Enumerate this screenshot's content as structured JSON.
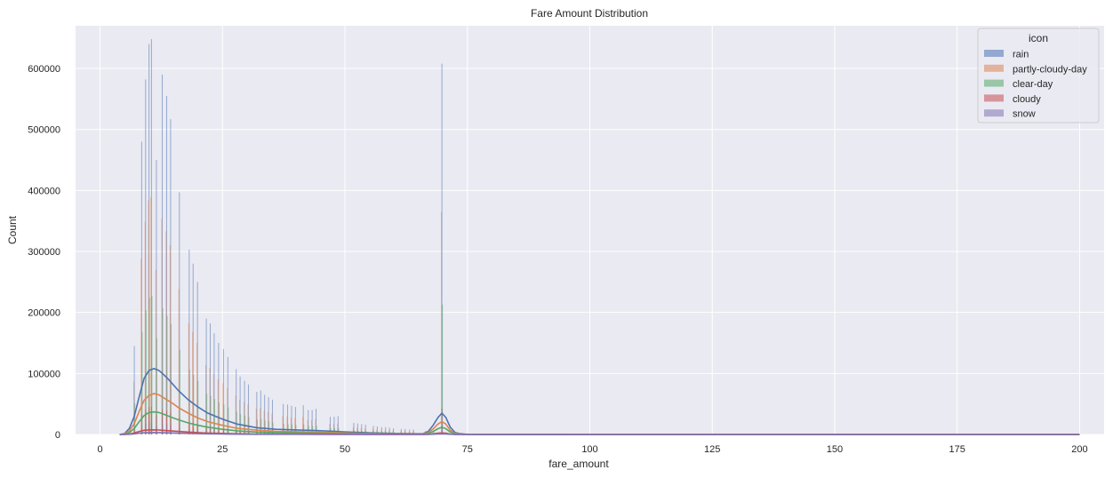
{
  "chart_data": {
    "type": "bar",
    "title": "Fare Amount Distribution",
    "xlabel": "fare_amount",
    "ylabel": "Count",
    "xlim": [
      -5,
      205
    ],
    "ylim": [
      0,
      670000
    ],
    "x_ticks": [
      0,
      25,
      50,
      75,
      100,
      125,
      150,
      175,
      200
    ],
    "y_ticks": [
      0,
      100000,
      200000,
      300000,
      400000,
      500000,
      600000
    ],
    "grid": true,
    "legend": {
      "title": "icon",
      "placement": "top-right"
    },
    "bins": [
      {
        "x": 7.0,
        "count": 145000
      },
      {
        "x": 8.5,
        "count": 480000
      },
      {
        "x": 9.3,
        "count": 582000
      },
      {
        "x": 10.0,
        "count": 640000
      },
      {
        "x": 10.5,
        "count": 648000
      },
      {
        "x": 11.5,
        "count": 450000
      },
      {
        "x": 12.7,
        "count": 590000
      },
      {
        "x": 13.6,
        "count": 555000
      },
      {
        "x": 14.4,
        "count": 517000
      },
      {
        "x": 16.2,
        "count": 397000
      },
      {
        "x": 18.2,
        "count": 303000
      },
      {
        "x": 19.0,
        "count": 280000
      },
      {
        "x": 19.9,
        "count": 250000
      },
      {
        "x": 21.7,
        "count": 190000
      },
      {
        "x": 22.5,
        "count": 182000
      },
      {
        "x": 23.3,
        "count": 166000
      },
      {
        "x": 24.2,
        "count": 150000
      },
      {
        "x": 25.2,
        "count": 140000
      },
      {
        "x": 26.1,
        "count": 127000
      },
      {
        "x": 27.8,
        "count": 107000
      },
      {
        "x": 28.6,
        "count": 95000
      },
      {
        "x": 29.5,
        "count": 88000
      },
      {
        "x": 30.3,
        "count": 82000
      },
      {
        "x": 32.0,
        "count": 70000
      },
      {
        "x": 32.8,
        "count": 72000
      },
      {
        "x": 33.6,
        "count": 65000
      },
      {
        "x": 34.4,
        "count": 61000
      },
      {
        "x": 35.2,
        "count": 57000
      },
      {
        "x": 37.4,
        "count": 50000
      },
      {
        "x": 38.3,
        "count": 49000
      },
      {
        "x": 39.1,
        "count": 47000
      },
      {
        "x": 39.9,
        "count": 45000
      },
      {
        "x": 41.5,
        "count": 48000
      },
      {
        "x": 42.5,
        "count": 40000
      },
      {
        "x": 43.3,
        "count": 40000
      },
      {
        "x": 44.1,
        "count": 42000
      },
      {
        "x": 47.0,
        "count": 29000
      },
      {
        "x": 47.8,
        "count": 29000
      },
      {
        "x": 48.6,
        "count": 30000
      },
      {
        "x": 51.8,
        "count": 19000
      },
      {
        "x": 52.6,
        "count": 18000
      },
      {
        "x": 53.4,
        "count": 17000
      },
      {
        "x": 54.2,
        "count": 16000
      },
      {
        "x": 55.8,
        "count": 14000
      },
      {
        "x": 56.6,
        "count": 13000
      },
      {
        "x": 57.5,
        "count": 12000
      },
      {
        "x": 58.3,
        "count": 12000
      },
      {
        "x": 59.1,
        "count": 11000
      },
      {
        "x": 59.9,
        "count": 10000
      },
      {
        "x": 61.5,
        "count": 9000
      },
      {
        "x": 62.3,
        "count": 9000
      },
      {
        "x": 63.2,
        "count": 8000
      },
      {
        "x": 64.0,
        "count": 8000
      },
      {
        "x": 66.5,
        "count": 6000
      },
      {
        "x": 67.3,
        "count": 5000
      },
      {
        "x": 68.1,
        "count": 5000
      },
      {
        "x": 69.8,
        "count": 608000
      },
      {
        "x": 72.0,
        "count": 4000
      },
      {
        "x": 74.0,
        "count": 3000
      }
    ],
    "series": [
      {
        "name": "rain",
        "color": "#4c72b0",
        "share": 1.0,
        "kde": [
          [
            4,
            0
          ],
          [
            5,
            1500
          ],
          [
            6,
            10000
          ],
          [
            7,
            30000
          ],
          [
            8,
            62000
          ],
          [
            9,
            92000
          ],
          [
            10,
            105000
          ],
          [
            11,
            108000
          ],
          [
            12,
            105000
          ],
          [
            13,
            98000
          ],
          [
            14,
            90000
          ],
          [
            15,
            81000
          ],
          [
            16,
            72000
          ],
          [
            18,
            57000
          ],
          [
            20,
            45000
          ],
          [
            22,
            35000
          ],
          [
            25,
            25000
          ],
          [
            28,
            17000
          ],
          [
            32,
            11000
          ],
          [
            36,
            8500
          ],
          [
            40,
            7500
          ],
          [
            44,
            6500
          ],
          [
            48,
            5000
          ],
          [
            52,
            3500
          ],
          [
            56,
            2500
          ],
          [
            60,
            1800
          ],
          [
            64,
            1200
          ],
          [
            66,
            1500
          ],
          [
            67,
            5000
          ],
          [
            68,
            15000
          ],
          [
            69,
            28000
          ],
          [
            69.8,
            35000
          ],
          [
            70.6,
            28000
          ],
          [
            71.5,
            12000
          ],
          [
            72.5,
            3000
          ],
          [
            74,
            600
          ],
          [
            76,
            200
          ],
          [
            80,
            100
          ],
          [
            100,
            50
          ],
          [
            200,
            0
          ]
        ]
      },
      {
        "name": "partly-cloudy-day",
        "color": "#dd8452",
        "share": 0.6,
        "kde": [
          [
            4,
            0
          ],
          [
            5,
            800
          ],
          [
            6,
            6000
          ],
          [
            7,
            18000
          ],
          [
            8,
            38000
          ],
          [
            9,
            56000
          ],
          [
            10,
            64000
          ],
          [
            11,
            67000
          ],
          [
            12,
            65000
          ],
          [
            13,
            60000
          ],
          [
            14,
            55000
          ],
          [
            15,
            50000
          ],
          [
            16,
            44000
          ],
          [
            18,
            35000
          ],
          [
            20,
            27000
          ],
          [
            22,
            21000
          ],
          [
            25,
            15000
          ],
          [
            28,
            10000
          ],
          [
            32,
            7000
          ],
          [
            36,
            5000
          ],
          [
            40,
            4500
          ],
          [
            44,
            4000
          ],
          [
            48,
            3000
          ],
          [
            52,
            2000
          ],
          [
            56,
            1500
          ],
          [
            60,
            1000
          ],
          [
            64,
            700
          ],
          [
            66,
            900
          ],
          [
            67,
            3000
          ],
          [
            68,
            9000
          ],
          [
            69,
            17000
          ],
          [
            69.8,
            21000
          ],
          [
            70.6,
            17000
          ],
          [
            71.5,
            7000
          ],
          [
            72.5,
            1800
          ],
          [
            74,
            300
          ],
          [
            76,
            100
          ],
          [
            80,
            50
          ],
          [
            100,
            30
          ],
          [
            200,
            0
          ]
        ]
      },
      {
        "name": "clear-day",
        "color": "#55a868",
        "share": 0.35,
        "kde": [
          [
            4,
            0
          ],
          [
            5,
            400
          ],
          [
            6,
            3000
          ],
          [
            7,
            10000
          ],
          [
            8,
            21000
          ],
          [
            9,
            31000
          ],
          [
            10,
            36000
          ],
          [
            11,
            37000
          ],
          [
            12,
            36000
          ],
          [
            13,
            33000
          ],
          [
            14,
            30000
          ],
          [
            15,
            27000
          ],
          [
            16,
            24000
          ],
          [
            18,
            19000
          ],
          [
            20,
            15000
          ],
          [
            22,
            12000
          ],
          [
            25,
            8500
          ],
          [
            28,
            6000
          ],
          [
            32,
            4000
          ],
          [
            36,
            3000
          ],
          [
            40,
            2500
          ],
          [
            44,
            2200
          ],
          [
            48,
            1700
          ],
          [
            52,
            1200
          ],
          [
            56,
            800
          ],
          [
            60,
            600
          ],
          [
            64,
            400
          ],
          [
            66,
            500
          ],
          [
            67,
            1600
          ],
          [
            68,
            5000
          ],
          [
            69,
            9500
          ],
          [
            69.8,
            12000
          ],
          [
            70.6,
            9500
          ],
          [
            71.5,
            4000
          ],
          [
            72.5,
            1000
          ],
          [
            74,
            200
          ],
          [
            76,
            80
          ],
          [
            80,
            30
          ],
          [
            100,
            20
          ],
          [
            200,
            0
          ]
        ]
      },
      {
        "name": "cloudy",
        "color": "#c44e52",
        "share": 0.07,
        "kde": [
          [
            4,
            0
          ],
          [
            5,
            100
          ],
          [
            6,
            800
          ],
          [
            7,
            2500
          ],
          [
            8,
            5000
          ],
          [
            9,
            6800
          ],
          [
            10,
            7500
          ],
          [
            11,
            7600
          ],
          [
            12,
            7300
          ],
          [
            13,
            6700
          ],
          [
            14,
            6100
          ],
          [
            15,
            5500
          ],
          [
            16,
            4900
          ],
          [
            18,
            3900
          ],
          [
            20,
            3000
          ],
          [
            22,
            2400
          ],
          [
            25,
            1700
          ],
          [
            28,
            1200
          ],
          [
            32,
            800
          ],
          [
            36,
            600
          ],
          [
            40,
            500
          ],
          [
            44,
            450
          ],
          [
            48,
            350
          ],
          [
            52,
            250
          ],
          [
            56,
            180
          ],
          [
            60,
            120
          ],
          [
            64,
            90
          ],
          [
            66,
            100
          ],
          [
            67,
            350
          ],
          [
            68,
            1000
          ],
          [
            69,
            2000
          ],
          [
            69.8,
            2500
          ],
          [
            70.6,
            2000
          ],
          [
            71.5,
            800
          ],
          [
            72.5,
            200
          ],
          [
            74,
            50
          ],
          [
            76,
            20
          ],
          [
            80,
            10
          ],
          [
            100,
            5
          ],
          [
            200,
            0
          ]
        ]
      },
      {
        "name": "snow",
        "color": "#8172b3",
        "share": 0.03,
        "kde": [
          [
            4,
            0
          ],
          [
            5,
            40
          ],
          [
            6,
            300
          ],
          [
            7,
            1000
          ],
          [
            8,
            2000
          ],
          [
            9,
            2800
          ],
          [
            10,
            3100
          ],
          [
            11,
            3200
          ],
          [
            12,
            3100
          ],
          [
            13,
            2800
          ],
          [
            14,
            2600
          ],
          [
            15,
            2300
          ],
          [
            16,
            2100
          ],
          [
            18,
            1700
          ],
          [
            20,
            1300
          ],
          [
            22,
            1000
          ],
          [
            25,
            700
          ],
          [
            28,
            500
          ],
          [
            32,
            350
          ],
          [
            36,
            250
          ],
          [
            40,
            220
          ],
          [
            44,
            200
          ],
          [
            48,
            150
          ],
          [
            52,
            100
          ],
          [
            56,
            80
          ],
          [
            60,
            50
          ],
          [
            64,
            40
          ],
          [
            66,
            45
          ],
          [
            67,
            150
          ],
          [
            68,
            420
          ],
          [
            69,
            850
          ],
          [
            69.8,
            1050
          ],
          [
            70.6,
            850
          ],
          [
            71.5,
            350
          ],
          [
            72.5,
            90
          ],
          [
            74,
            20
          ],
          [
            76,
            10
          ],
          [
            80,
            5
          ],
          [
            100,
            2
          ],
          [
            200,
            0
          ]
        ]
      }
    ]
  }
}
